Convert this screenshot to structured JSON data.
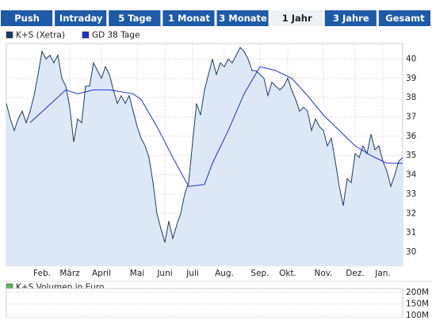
{
  "tabs": [
    "Push",
    "Intraday",
    "5 Tage",
    "1 Monat",
    "3 Monate",
    "1 Jahr",
    "3 Jahre",
    "Gesamt"
  ],
  "selected_tab": 5,
  "chart_data": [
    {
      "type": "line",
      "series": [
        {
          "name": "K+S (Xetra)",
          "color": "#1b3a6b",
          "fill": "#dde8f7",
          "values": [
            37.7,
            36.9,
            36.3,
            36.9,
            37.3,
            36.7,
            37.3,
            38.1,
            39.2,
            40.4,
            40.0,
            40.2,
            39.8,
            40.2,
            39.0,
            38.6,
            37.5,
            35.7,
            36.9,
            36.7,
            38.6,
            38.6,
            39.8,
            39.4,
            39.0,
            39.6,
            39.2,
            38.4,
            37.7,
            38.1,
            37.7,
            38.1,
            37.3,
            36.5,
            35.9,
            35.5,
            34.9,
            33.6,
            32.0,
            31.2,
            30.5,
            31.6,
            30.7,
            31.4,
            32.0,
            33.0,
            33.6,
            35.7,
            37.7,
            37.1,
            38.4,
            39.2,
            40.0,
            39.2,
            39.8,
            39.6,
            40.0,
            39.8,
            40.2,
            40.6,
            40.4,
            40.0,
            39.4,
            39.4,
            39.2,
            39.0,
            38.1,
            38.8,
            38.6,
            38.4,
            38.6,
            39.0,
            38.4,
            37.9,
            37.3,
            37.5,
            37.3,
            36.3,
            36.9,
            36.5,
            36.3,
            35.5,
            35.9,
            34.7,
            33.4,
            32.4,
            33.8,
            33.6,
            35.1,
            34.9,
            35.5,
            35.1,
            36.1,
            35.3,
            35.5,
            34.7,
            34.2,
            33.4,
            34.0,
            34.7,
            34.9
          ]
        },
        {
          "name": "GD 38 Tage",
          "color": "#1a2fc8",
          "x": [
            6,
            15,
            18,
            22,
            26,
            32,
            34,
            38,
            42,
            46,
            50,
            52,
            56,
            60,
            64,
            68,
            72,
            76,
            80,
            84,
            88,
            92,
            96,
            100
          ],
          "values": [
            36.7,
            38.4,
            38.2,
            38.4,
            38.4,
            38.2,
            37.9,
            36.5,
            34.9,
            33.4,
            33.5,
            34.6,
            36.3,
            38.2,
            39.6,
            39.4,
            39.0,
            38.1,
            37.1,
            36.3,
            35.5,
            35.0,
            34.6,
            34.6
          ]
        }
      ],
      "xlim": [
        0,
        100
      ],
      "xticks": [
        {
          "value": 9,
          "label": "Feb."
        },
        {
          "value": 16,
          "label": "März"
        },
        {
          "value": 24,
          "label": "April"
        },
        {
          "value": 33,
          "label": "Mai"
        },
        {
          "value": 40,
          "label": "Juni"
        },
        {
          "value": 47,
          "label": "Juli"
        },
        {
          "value": 55,
          "label": "Aug."
        },
        {
          "value": 64,
          "label": "Sep."
        },
        {
          "value": 71,
          "label": "Okt."
        },
        {
          "value": 80,
          "label": "Nov."
        },
        {
          "value": 88,
          "label": "Dez."
        },
        {
          "value": 95,
          "label": "Jan."
        }
      ],
      "ylim": [
        29.3,
        40.8
      ],
      "yticks": [
        30,
        31,
        32,
        33,
        34,
        35,
        36,
        37,
        38,
        39,
        40
      ],
      "grid": true
    },
    {
      "type": "bar",
      "series": [
        {
          "name": "K+S Volumen in Euro",
          "color": "#5cb85c"
        }
      ],
      "ylim": [
        100000000,
        210000000
      ],
      "yticks": [
        {
          "value": 100000000,
          "label": "100M"
        },
        {
          "value": 150000000,
          "label": "150M"
        },
        {
          "value": 200000000,
          "label": "200M"
        }
      ],
      "grid": true
    }
  ]
}
